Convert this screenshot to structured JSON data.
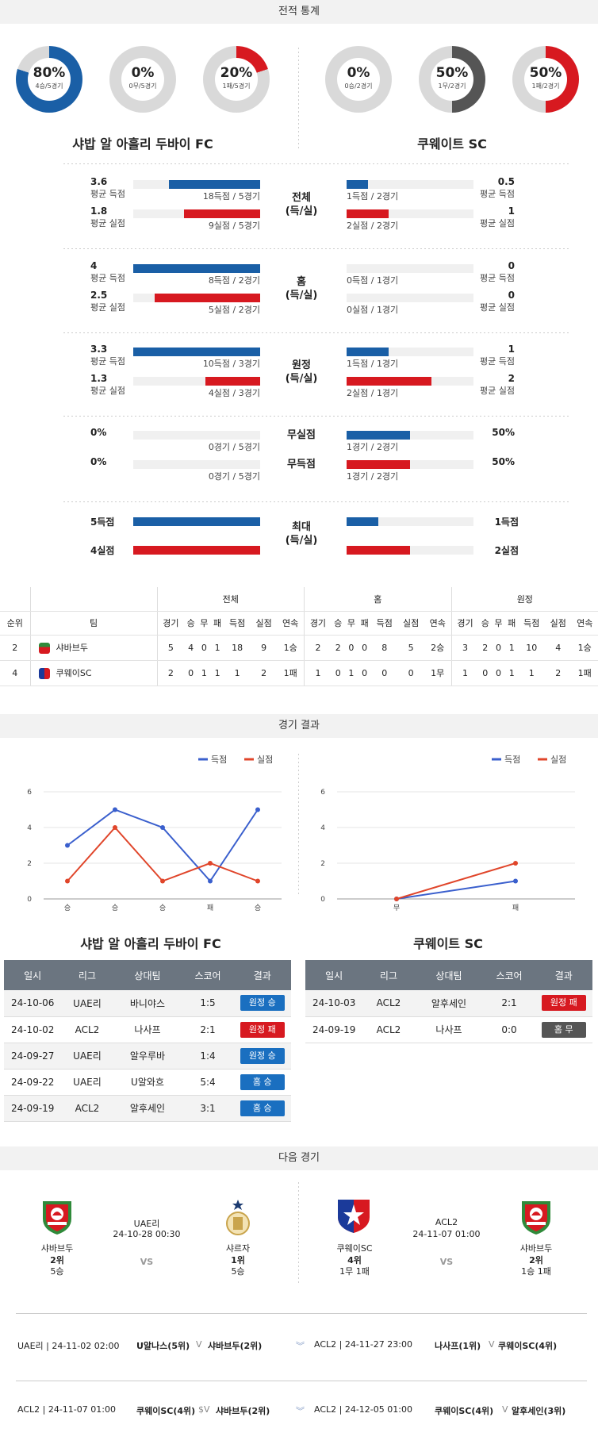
{
  "sections": {
    "stats": "전적 통계",
    "results": "경기 결과",
    "next": "다음 경기"
  },
  "teams": {
    "home": "샤밥 알 아흘리 두바이 FC",
    "away": "쿠웨이트 SC"
  },
  "donuts": [
    {
      "pct": "80%",
      "sub": "4승/5경기",
      "value": 0.8,
      "color": "#1a5fa6"
    },
    {
      "pct": "0%",
      "sub": "0무/5경기",
      "value": 0,
      "color": "#555555"
    },
    {
      "pct": "20%",
      "sub": "1패/5경기",
      "value": 0.2,
      "color": "#d71920"
    },
    {
      "pct": "0%",
      "sub": "0승/2경기",
      "value": 0,
      "color": "#1a5fa6"
    },
    {
      "pct": "50%",
      "sub": "1무/2경기",
      "value": 0.5,
      "color": "#555555"
    },
    {
      "pct": "50%",
      "sub": "1패/2경기",
      "value": 0.5,
      "color": "#d71920"
    }
  ],
  "labels": {
    "avg_for": "평균 득점",
    "avg_against": "평균 실점"
  },
  "split": [
    {
      "title1": "전체",
      "title2": "(득/실)",
      "home": {
        "for": "3.6",
        "for_cap": "18득점 / 5경기",
        "for_ratio": 0.72,
        "against": "1.8",
        "against_cap": "9실점 / 5경기",
        "against_ratio": 0.6
      },
      "away": {
        "for": "0.5",
        "for_cap": "1득점 / 2경기",
        "for_ratio": 0.17,
        "against": "1",
        "against_cap": "2실점 / 2경기",
        "against_ratio": 0.33
      }
    },
    {
      "title1": "홈",
      "title2": "(득/실)",
      "home": {
        "for": "4",
        "for_cap": "8득점 / 2경기",
        "for_ratio": 1.0,
        "against": "2.5",
        "against_cap": "5실점 / 2경기",
        "against_ratio": 0.83
      },
      "away": {
        "for": "0",
        "for_cap": "0득점 / 1경기",
        "for_ratio": 0,
        "against": "0",
        "against_cap": "0실점 / 1경기",
        "against_ratio": 0
      }
    },
    {
      "title1": "원정",
      "title2": "(득/실)",
      "home": {
        "for": "3.3",
        "for_cap": "10득점 / 3경기",
        "for_ratio": 1.0,
        "against": "1.3",
        "against_cap": "4실점 / 3경기",
        "against_ratio": 0.43
      },
      "away": {
        "for": "1",
        "for_cap": "1득점 / 1경기",
        "for_ratio": 0.33,
        "against": "2",
        "against_cap": "2실점 / 1경기",
        "against_ratio": 0.67
      }
    }
  ],
  "clean": [
    {
      "title": "무실점",
      "home": "0%",
      "home_cap": "0경기 / 5경기",
      "home_ratio": 0,
      "away": "50%",
      "away_cap": "1경기 / 2경기",
      "away_ratio": 0.5,
      "away_color": "blue"
    },
    {
      "title": "무득점",
      "home": "0%",
      "home_cap": "0경기 / 5경기",
      "home_ratio": 0,
      "away": "50%",
      "away_cap": "1경기 / 2경기",
      "away_ratio": 0.5,
      "away_color": "red"
    }
  ],
  "max": {
    "title1": "최대",
    "title2": "(득/실)",
    "home_for": "5득점",
    "home_against": "4실점",
    "away_for": "1득점",
    "away_against": "2실점",
    "away_for_ratio": 0.25,
    "away_against_ratio": 0.5
  },
  "standings": {
    "groups": [
      "전체",
      "홈",
      "원정"
    ],
    "cols": [
      "순위",
      "팀",
      "경기",
      "승",
      "무",
      "패",
      "득점",
      "실점",
      "연속",
      "경기",
      "승",
      "무",
      "패",
      "득점",
      "실점",
      "연속",
      "경기",
      "승",
      "무",
      "패",
      "득점",
      "실점",
      "연속"
    ],
    "rows": [
      {
        "rank": "2",
        "team": "샤바브두",
        "vals": [
          "5",
          "4",
          "0",
          "1",
          "18",
          "9",
          "1승",
          "2",
          "2",
          "0",
          "0",
          "8",
          "5",
          "2승",
          "3",
          "2",
          "0",
          "1",
          "10",
          "4",
          "1승"
        ]
      },
      {
        "rank": "4",
        "team": "쿠웨이SC",
        "vals": [
          "2",
          "0",
          "1",
          "1",
          "1",
          "2",
          "1패",
          "1",
          "0",
          "1",
          "0",
          "0",
          "0",
          "1무",
          "1",
          "0",
          "0",
          "1",
          "1",
          "2",
          "1패"
        ]
      }
    ]
  },
  "legend": {
    "for": "득점",
    "against": "실점"
  },
  "chart_data": [
    {
      "type": "line",
      "categories": [
        "승",
        "승",
        "승",
        "패",
        "승"
      ],
      "ylim": [
        0,
        6
      ],
      "yticks": [
        0,
        2,
        4,
        6
      ],
      "series": [
        {
          "name": "득점",
          "values": [
            3,
            5,
            4,
            1,
            5
          ],
          "color": "#3a5fcd"
        },
        {
          "name": "실점",
          "values": [
            1,
            4,
            1,
            2,
            1
          ],
          "color": "#e0452a"
        }
      ]
    },
    {
      "type": "line",
      "categories": [
        "무",
        "패"
      ],
      "ylim": [
        0,
        6
      ],
      "yticks": [
        0,
        2,
        4,
        6
      ],
      "series": [
        {
          "name": "득점",
          "values": [
            0,
            1
          ],
          "color": "#3a5fcd"
        },
        {
          "name": "실점",
          "values": [
            0,
            2
          ],
          "color": "#e0452a"
        }
      ]
    }
  ],
  "results_headers": [
    "일시",
    "리그",
    "상대팀",
    "스코어",
    "결과"
  ],
  "home_results": [
    {
      "date": "24-10-06",
      "league": "UAE리",
      "opp": "바니야스",
      "score": "1:5",
      "res": "원정 승",
      "c": "blue"
    },
    {
      "date": "24-10-02",
      "league": "ACL2",
      "opp": "나사프",
      "score": "2:1",
      "res": "원정 패",
      "c": "red"
    },
    {
      "date": "24-09-27",
      "league": "UAE리",
      "opp": "알우루바",
      "score": "1:4",
      "res": "원정 승",
      "c": "blue"
    },
    {
      "date": "24-09-22",
      "league": "UAE리",
      "opp": "U알와흐",
      "score": "5:4",
      "res": "홈 승",
      "c": "blue"
    },
    {
      "date": "24-09-19",
      "league": "ACL2",
      "opp": "알후세인",
      "score": "3:1",
      "res": "홈 승",
      "c": "blue"
    }
  ],
  "away_results": [
    {
      "date": "24-10-03",
      "league": "ACL2",
      "opp": "알후세인",
      "score": "2:1",
      "res": "원정 패",
      "c": "red"
    },
    {
      "date": "24-09-19",
      "league": "ACL2",
      "opp": "나사프",
      "score": "0:0",
      "res": "홈 무",
      "c": "gray"
    }
  ],
  "next": [
    {
      "league": "UAE리",
      "time": "24-10-28 00:30",
      "vs": "VS",
      "left": {
        "name": "샤바브두",
        "rank": "2위",
        "form": "5승"
      },
      "right": {
        "name": "샤르자",
        "rank": "1위",
        "form": "5승"
      }
    },
    {
      "league": "ACL2",
      "time": "24-11-07 01:00",
      "vs": "VS",
      "left": {
        "name": "쿠웨이SC",
        "rank": "4위",
        "form": "1무 1패"
      },
      "right": {
        "name": "샤바브두",
        "rank": "2위",
        "form": "1승 1패"
      }
    }
  ],
  "fixtures": [
    {
      "meta": "UAE리 | 24-11-02 02:00",
      "a": "U알나스(5위)",
      "v": "V",
      "b": "샤바브두(2위)"
    },
    {
      "meta": "ACL2 | 24-11-27 23:00",
      "a": "나사프(1위)",
      "v": "V",
      "b": "쿠웨이SC(4위)"
    },
    {
      "meta": "ACL2 | 24-11-07 01:00",
      "a": "쿠웨이SC(4위)",
      "v": "$V",
      "b": "샤바브두(2위)"
    },
    {
      "meta": "ACL2 | 24-12-05 01:00",
      "a": "쿠웨이SC(4위)",
      "v": "V",
      "b": "알후세인(3위)"
    }
  ]
}
